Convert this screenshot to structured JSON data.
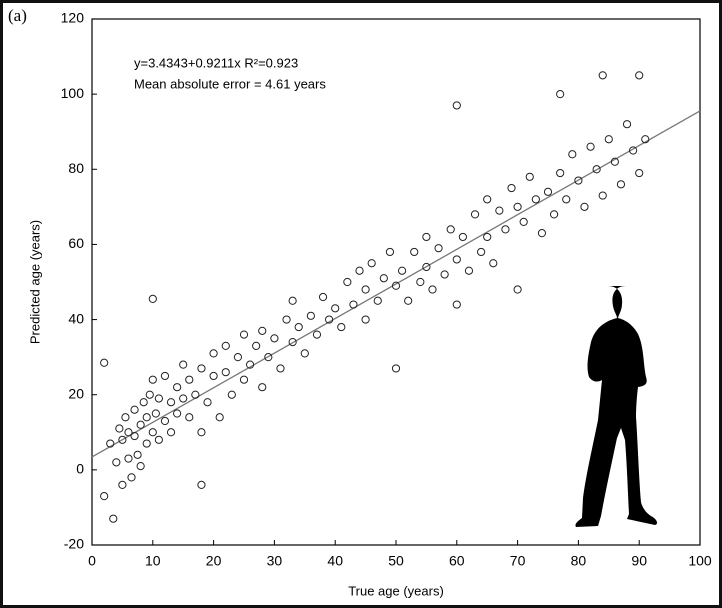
{
  "chart_data": {
    "type": "scatter",
    "panel_label": "(a)",
    "annotations": [
      "y=3.4343+0.9211x R²=0.923",
      "Mean absolute error = 4.61 years"
    ],
    "x_label": "True age (years)",
    "y_label": "Predicted age (years)",
    "xlim": [
      0,
      100
    ],
    "ylim": [
      -20,
      120
    ],
    "xticks": [
      0,
      10,
      20,
      30,
      40,
      50,
      60,
      70,
      80,
      90,
      100
    ],
    "yticks": [
      -20,
      0,
      20,
      40,
      60,
      80,
      100,
      120
    ],
    "color": "#222222",
    "fit_line": {
      "x": [
        0,
        100
      ],
      "values": [
        3.43,
        95.54
      ],
      "color": "#777777"
    },
    "x": [
      2,
      2,
      3,
      3.5,
      4,
      4.5,
      5,
      5,
      5.5,
      6,
      6,
      6.5,
      7,
      7,
      7.5,
      8,
      8,
      8.5,
      9,
      9,
      9.5,
      10,
      10,
      10,
      10.5,
      11,
      11,
      12,
      12,
      13,
      13,
      14,
      14,
      15,
      15,
      16,
      16,
      17,
      18,
      18,
      18,
      19,
      20,
      20,
      21,
      22,
      22,
      23,
      24,
      25,
      25,
      26,
      27,
      28,
      28,
      29,
      30,
      31,
      32,
      33,
      33,
      34,
      35,
      36,
      37,
      38,
      39,
      40,
      41,
      42,
      43,
      44,
      45,
      45,
      46,
      47,
      48,
      49,
      50,
      50,
      51,
      52,
      53,
      54,
      55,
      55,
      56,
      57,
      58,
      59,
      60,
      60,
      60,
      61,
      62,
      63,
      64,
      65,
      65,
      66,
      67,
      68,
      69,
      70,
      70,
      71,
      72,
      73,
      74,
      75,
      76,
      77,
      77,
      78,
      79,
      80,
      81,
      82,
      83,
      84,
      84,
      85,
      86,
      87,
      88,
      89,
      90,
      90,
      91
    ],
    "values": [
      28.5,
      -7,
      7,
      -13,
      2,
      11,
      -4,
      8,
      14,
      3,
      10,
      -2,
      9,
      16,
      4,
      12,
      1,
      18,
      7,
      14,
      20,
      10,
      45.5,
      24,
      15,
      8,
      19,
      13,
      25,
      18,
      10,
      22,
      15,
      28,
      19,
      14,
      24,
      20,
      -4,
      27,
      10,
      18,
      25,
      31,
      14,
      26,
      33,
      20,
      30,
      24,
      36,
      28,
      33,
      22,
      37,
      30,
      35,
      27,
      40,
      34,
      45,
      38,
      31,
      41,
      36,
      46,
      40,
      43,
      38,
      50,
      44,
      53,
      40,
      48,
      55,
      45,
      51,
      58,
      27,
      49,
      53,
      45,
      58,
      50,
      62,
      54,
      48,
      59,
      52,
      64,
      97,
      56,
      44,
      62,
      53,
      68,
      58,
      72,
      62,
      55,
      69,
      64,
      75,
      48,
      70,
      66,
      78,
      72,
      63,
      74,
      68,
      100,
      79,
      72,
      84,
      77,
      70,
      86,
      80,
      105,
      73,
      88,
      82,
      76,
      92,
      85,
      105,
      79,
      88
    ]
  }
}
